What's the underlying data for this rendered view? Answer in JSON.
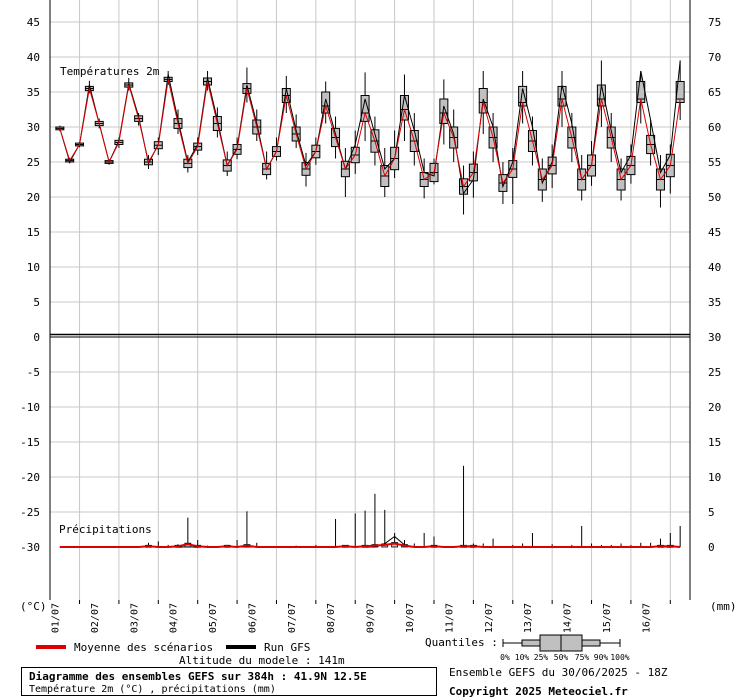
{
  "header": {
    "temp_section_label": "Températures 2m",
    "precip_section_label": "Précipitations"
  },
  "axes": {
    "left_unit": "(°C)",
    "right_unit": "(mm)",
    "left_ticks_top": [
      "45",
      "40",
      "35",
      "30",
      "25",
      "20",
      "15",
      "10",
      "5",
      "0"
    ],
    "right_ticks_top": [
      "75",
      "70",
      "65",
      "60",
      "55",
      "50",
      "45",
      "40",
      "35",
      "30"
    ],
    "left_ticks_bottom": [
      "-5",
      "-10",
      "-15",
      "-20",
      "-25",
      "-30"
    ],
    "right_ticks_bottom": [
      "25",
      "20",
      "15",
      "10",
      "5",
      "0"
    ],
    "date_labels": [
      "01/07",
      "02/07",
      "03/07",
      "04/07",
      "05/07",
      "06/07",
      "07/07",
      "08/07",
      "09/07",
      "10/07",
      "11/07",
      "12/07",
      "13/07",
      "14/07",
      "15/07",
      "16/07"
    ]
  },
  "legend": {
    "mean_label": "Moyenne des scénarios",
    "gfs_label": "Run GFS",
    "altitude": "Altitude du modele : 141m",
    "quantiles_label": "Quantiles :",
    "quantile_ticks": [
      "0%",
      "10%",
      "25%",
      "50%",
      "75%",
      "90%",
      "100%"
    ],
    "ensemble": "Ensemble GEFS du 30/06/2025 - 18Z",
    "copyright": "Copyright 2025 Meteociel.fr"
  },
  "info": {
    "title": "Diagramme des ensembles GEFS sur 384h : 41.9N 12.5E",
    "subtitle": "Température 2m (°C) , précipitations (mm)"
  },
  "colors": {
    "mean": "#dd0000",
    "gfs": "#000000",
    "box_fill": "#c0c0c0",
    "grid": "#c8c8c8"
  },
  "chart_data": [
    {
      "type": "box",
      "title": "Températures 2m",
      "ylabel": "(°C)",
      "ylim": [
        0,
        45
      ],
      "x_unit": "hours from 30/06/2025 18Z",
      "x_step_hours": 6,
      "first_x": 6,
      "mean": [
        29.8,
        25.2,
        27.5,
        35.5,
        30.5,
        25.0,
        27.8,
        36.0,
        31.2,
        25.0,
        27.4,
        36.8,
        30.5,
        24.8,
        27.2,
        36.5,
        30.5,
        24.5,
        26.8,
        35.5,
        30.0,
        24.0,
        26.5,
        34.5,
        29.0,
        24.0,
        26.5,
        33.0,
        28.5,
        24.0,
        26.0,
        32.0,
        28.0,
        23.0,
        25.5,
        32.5,
        28.0,
        22.5,
        23.5,
        32.0,
        28.5,
        21.5,
        23.5,
        33.5,
        28.5,
        22.0,
        24.0,
        33.5,
        28.0,
        22.5,
        24.5,
        34.0,
        28.5,
        22.5,
        24.5,
        34.0,
        28.5,
        22.5,
        24.5,
        34.0,
        27.5,
        22.5,
        24.5,
        34.0
      ],
      "gfs": [
        29.8,
        25.0,
        27.5,
        36.0,
        30.5,
        25.0,
        28.0,
        36.2,
        31.5,
        24.8,
        27.5,
        37.5,
        31.0,
        25.0,
        27.5,
        37.0,
        31.0,
        24.5,
        27.0,
        36.0,
        30.5,
        24.0,
        26.5,
        35.5,
        29.5,
        24.5,
        26.5,
        34.0,
        29.0,
        24.0,
        27.5,
        34.0,
        29.0,
        24.0,
        25.5,
        34.5,
        29.5,
        23.5,
        23.0,
        33.0,
        29.0,
        20.5,
        22.5,
        34.0,
        30.0,
        21.5,
        25.0,
        35.5,
        30.0,
        22.0,
        25.0,
        36.0,
        30.5,
        22.5,
        24.5,
        36.0,
        29.5,
        23.5,
        26.0,
        38.0,
        31.0,
        23.5,
        26.0,
        39.5
      ],
      "box_q25": [
        29.6,
        25.0,
        27.3,
        35.2,
        30.2,
        24.8,
        27.5,
        35.7,
        30.8,
        24.6,
        26.9,
        36.5,
        29.8,
        24.2,
        26.7,
        36.0,
        29.5,
        23.7,
        26.1,
        34.8,
        29.0,
        23.2,
        25.8,
        33.5,
        28.0,
        23.1,
        25.6,
        32.0,
        27.2,
        22.9,
        24.9,
        30.8,
        26.4,
        21.5,
        23.9,
        31.0,
        26.5,
        21.5,
        22.2,
        30.5,
        27.0,
        20.4,
        22.3,
        32.0,
        27.0,
        20.8,
        22.8,
        33.0,
        26.5,
        21.0,
        23.3,
        33.0,
        27.0,
        21.0,
        23.0,
        33.0,
        27.0,
        21.0,
        23.2,
        33.5,
        26.2,
        21.0,
        22.9,
        33.5
      ],
      "box_q75": [
        30.0,
        25.4,
        27.7,
        35.8,
        30.8,
        25.2,
        28.1,
        36.3,
        31.6,
        25.4,
        27.9,
        37.1,
        31.2,
        25.4,
        27.7,
        37.0,
        31.5,
        25.3,
        27.5,
        36.2,
        31.0,
        24.8,
        27.2,
        35.5,
        30.0,
        24.9,
        27.4,
        35.0,
        29.8,
        25.1,
        27.1,
        34.5,
        29.6,
        24.5,
        27.1,
        34.5,
        29.5,
        23.5,
        24.8,
        34.0,
        30.0,
        22.6,
        24.7,
        35.5,
        30.0,
        23.2,
        25.2,
        35.8,
        29.5,
        24.0,
        25.7,
        35.8,
        30.0,
        24.0,
        26.0,
        36.0,
        30.0,
        24.0,
        25.8,
        36.5,
        28.8,
        24.0,
        26.1,
        36.5
      ],
      "whisker_min": [
        29.4,
        24.8,
        27.1,
        34.8,
        29.8,
        24.6,
        27.0,
        35.2,
        30.2,
        24.0,
        26.0,
        36.0,
        29.0,
        23.5,
        26.0,
        35.2,
        28.5,
        23.0,
        25.4,
        33.5,
        28.0,
        22.5,
        25.2,
        32.0,
        27.0,
        21.5,
        24.6,
        30.5,
        25.5,
        20.0,
        23.3,
        28.0,
        24.5,
        20.0,
        22.7,
        28.0,
        24.5,
        19.8,
        21.8,
        27.5,
        25.0,
        17.5,
        19.9,
        29.0,
        25.0,
        19.0,
        19.0,
        30.5,
        24.5,
        19.3,
        21.3,
        30.0,
        25.0,
        19.5,
        21.6,
        30.0,
        25.0,
        19.5,
        21.9,
        30.5,
        24.5,
        18.5,
        20.5,
        31.0
      ],
      "whisker_max": [
        30.2,
        25.6,
        27.9,
        36.6,
        31.2,
        25.4,
        28.5,
        37.0,
        32.0,
        26.0,
        28.5,
        38.0,
        32.5,
        26.0,
        28.5,
        38.0,
        32.8,
        26.5,
        28.5,
        38.5,
        32.5,
        26.5,
        28.5,
        37.3,
        31.8,
        26.3,
        28.5,
        36.5,
        31.5,
        27.0,
        29.5,
        37.8,
        31.5,
        27.0,
        29.5,
        37.5,
        32.0,
        25.5,
        25.5,
        36.8,
        32.5,
        24.5,
        26.5,
        38.0,
        32.0,
        25.0,
        27.0,
        38.0,
        31.5,
        25.5,
        27.5,
        38.0,
        32.0,
        26.0,
        28.0,
        39.5,
        32.0,
        25.5,
        27.5,
        38.0,
        31.0,
        26.0,
        27.5,
        39.5
      ]
    },
    {
      "type": "box",
      "title": "Précipitations",
      "ylabel": "(mm)",
      "ylim": [
        0,
        30
      ],
      "mean": [
        0,
        0,
        0,
        0,
        0,
        0,
        0,
        0,
        0,
        0.1,
        0,
        0,
        0.1,
        0.4,
        0.1,
        0,
        0,
        0.1,
        0,
        0.2,
        0,
        0,
        0,
        0,
        0,
        0,
        0,
        0,
        0,
        0.1,
        0,
        0.1,
        0.2,
        0.3,
        0.5,
        0.2,
        0,
        0,
        0.1,
        0,
        0,
        0.1,
        0.1,
        0,
        0,
        0,
        0,
        0,
        0,
        0,
        0,
        0,
        0,
        0,
        0,
        0,
        0,
        0,
        0,
        0,
        0,
        0.1,
        0.1,
        0
      ],
      "gfs": [
        0,
        0,
        0,
        0,
        0,
        0,
        0,
        0,
        0,
        0,
        0,
        0,
        0,
        0,
        0,
        0,
        0,
        0,
        0,
        0,
        0,
        0,
        0,
        0,
        0,
        0,
        0,
        0,
        0,
        0,
        0,
        0,
        0,
        0.5,
        1.5,
        0.3,
        0,
        0,
        0,
        0,
        0,
        0,
        0,
        0,
        0,
        0,
        0,
        0,
        0,
        0,
        0,
        0,
        0,
        0,
        0,
        0,
        0,
        0,
        0,
        0,
        0,
        0,
        0,
        0
      ],
      "whisker_max": [
        0,
        0,
        0,
        0,
        0,
        0,
        0,
        0,
        0,
        0.6,
        0.8,
        0.3,
        0.4,
        4.2,
        1.0,
        0.2,
        0,
        0.3,
        1.0,
        5.1,
        0.6,
        0.1,
        0,
        0,
        0.2,
        0.1,
        0.3,
        0,
        4.0,
        0,
        4.8,
        5.2,
        7.6,
        5.3,
        2.0,
        1.0,
        0.5,
        2.0,
        1.5,
        0,
        0,
        11.6,
        0.5,
        0.5,
        1.2,
        0,
        0.3,
        0.5,
        2.0,
        0,
        0.4,
        0,
        0.3,
        3.0,
        0.5,
        0.3,
        0.3,
        0.5,
        0.3,
        0.6,
        0.6,
        1.2,
        2.0,
        3.0
      ]
    }
  ]
}
